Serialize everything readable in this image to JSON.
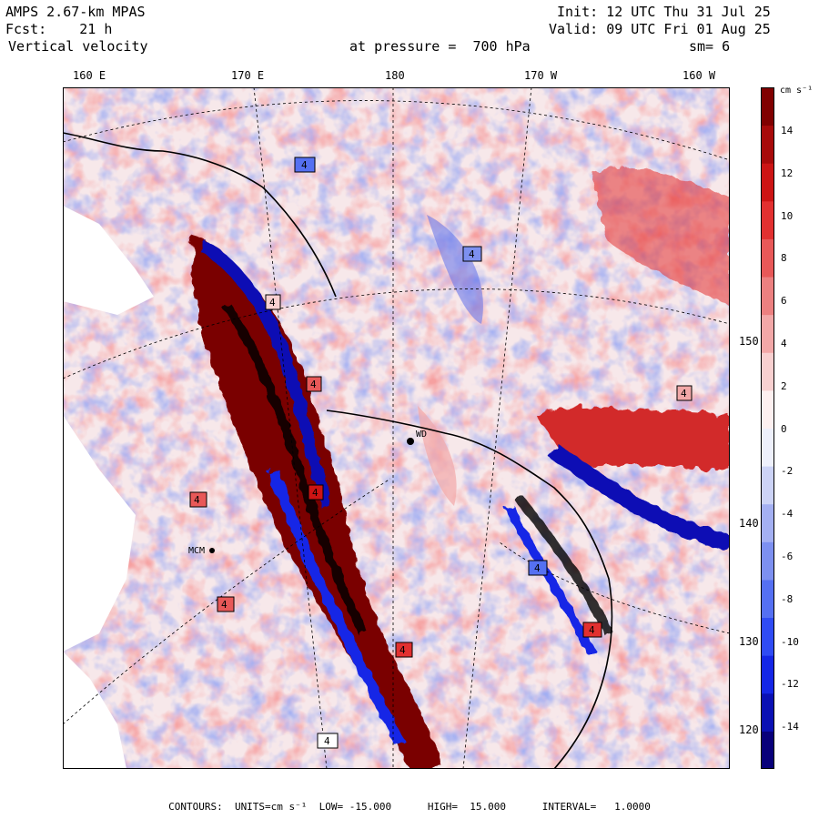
{
  "header": {
    "model": "AMPS 2.67-km MPAS",
    "forecast": "Fcst:    21 h",
    "field": "Vertical velocity",
    "level": "at pressure =  700 hPa",
    "init": "Init: 12 UTC Thu 31 Jul 25",
    "valid": "Valid: 09 UTC Fri 01 Aug 25",
    "smoothing": "sm= 6"
  },
  "longitude_labels": [
    "160 E",
    "170 E",
    "180",
    "170 W",
    "160 W"
  ],
  "latitude_labels": [
    "150 W",
    "140 W",
    "130 W",
    "120 W"
  ],
  "colorbar": {
    "units": "cm s⁻¹",
    "ticks": [
      "14",
      "12",
      "10",
      "8",
      "6",
      "4",
      "2",
      "0",
      "-2",
      "-4",
      "-6",
      "-8",
      "-10",
      "-12",
      "-14"
    ],
    "colors": [
      "#08007a",
      "#0a10b4",
      "#1426e6",
      "#2f4bf4",
      "#5570f2",
      "#7d90f0",
      "#a4b0f2",
      "#ccd3f6",
      "#eef0fb",
      "#fdf0f0",
      "#f8d0d0",
      "#f2a8a8",
      "#ec8080",
      "#e85858",
      "#e23030",
      "#cc1414",
      "#a80a0a",
      "#800000"
    ]
  },
  "footer": "CONTOURS:  UNITS=cm s⁻¹  LOW= -15.000      HIGH=  15.000      INTERVAL=   1.0000",
  "map": {
    "highlights": [
      "4",
      "4",
      "4",
      "4",
      "4",
      "4",
      "4",
      "4",
      "4",
      "4",
      "4",
      "4"
    ],
    "station_labels": [
      "WD",
      "MCM"
    ]
  }
}
